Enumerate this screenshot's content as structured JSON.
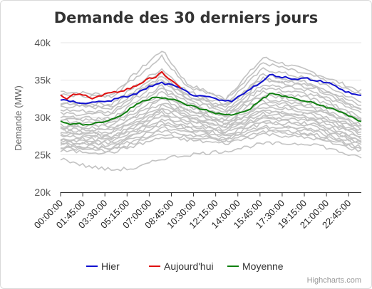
{
  "chart_data": {
    "type": "line",
    "title": "Demande des 30 derniers jours",
    "ylabel": "Demande (MW)",
    "xlabel": "",
    "ylim": [
      20000,
      40000
    ],
    "yticks": [
      20000,
      25000,
      30000,
      35000,
      40000
    ],
    "ytick_labels": [
      "20k",
      "25k",
      "30k",
      "35k",
      "40k"
    ],
    "x_tick_labels": [
      "00:00:00",
      "01:45:00",
      "03:30:00",
      "05:15:00",
      "07:00:00",
      "08:45:00",
      "10:30:00",
      "12:15:00",
      "14:00:00",
      "15:45:00",
      "17:30:00",
      "19:15:00",
      "21:00:00",
      "22:45:00"
    ],
    "x_step_minutes": 15,
    "n_points": 96,
    "grid": true,
    "legend_position": "bottom",
    "series": [
      {
        "name": "Hier",
        "color": "#1010d0",
        "keypoints": [
          [
            0,
            32300
          ],
          [
            4,
            32100
          ],
          [
            8,
            31900
          ],
          [
            12,
            32100
          ],
          [
            16,
            32300
          ],
          [
            20,
            32700
          ],
          [
            24,
            33200
          ],
          [
            28,
            34100
          ],
          [
            32,
            34600
          ],
          [
            34,
            34400
          ],
          [
            36,
            34200
          ],
          [
            38,
            33800
          ],
          [
            40,
            33400
          ],
          [
            42,
            33000
          ],
          [
            44,
            32800
          ],
          [
            46,
            32700
          ],
          [
            48,
            32600
          ],
          [
            50,
            32300
          ],
          [
            52,
            32200
          ],
          [
            54,
            32100
          ],
          [
            56,
            32700
          ],
          [
            58,
            33300
          ],
          [
            60,
            33900
          ],
          [
            64,
            34800
          ],
          [
            66,
            35700
          ],
          [
            68,
            35600
          ],
          [
            70,
            35400
          ],
          [
            72,
            35300
          ],
          [
            74,
            35100
          ],
          [
            76,
            35300
          ],
          [
            78,
            35200
          ],
          [
            80,
            35000
          ],
          [
            82,
            34900
          ],
          [
            84,
            34700
          ],
          [
            86,
            34400
          ],
          [
            88,
            33800
          ],
          [
            90,
            33500
          ],
          [
            92,
            33200
          ],
          [
            95,
            32900
          ]
        ]
      },
      {
        "name": "Aujourd'hui",
        "color": "#e01010",
        "keypoints": [
          [
            0,
            33000
          ],
          [
            2,
            32500
          ],
          [
            4,
            33100
          ],
          [
            8,
            32900
          ],
          [
            10,
            32600
          ],
          [
            12,
            32800
          ],
          [
            16,
            33300
          ],
          [
            20,
            33600
          ],
          [
            24,
            34200
          ],
          [
            26,
            34800
          ],
          [
            28,
            35300
          ],
          [
            30,
            35400
          ],
          [
            32,
            36100
          ],
          [
            34,
            35200
          ],
          [
            36,
            34600
          ],
          [
            38,
            34000
          ]
        ]
      },
      {
        "name": "Moyenne",
        "color": "#108010",
        "keypoints": [
          [
            0,
            29400
          ],
          [
            4,
            29100
          ],
          [
            8,
            29100
          ],
          [
            12,
            29300
          ],
          [
            16,
            29700
          ],
          [
            20,
            30500
          ],
          [
            24,
            31800
          ],
          [
            28,
            32500
          ],
          [
            30,
            32800
          ],
          [
            32,
            32700
          ],
          [
            36,
            32300
          ],
          [
            40,
            31700
          ],
          [
            44,
            31200
          ],
          [
            48,
            30700
          ],
          [
            52,
            30300
          ],
          [
            56,
            30500
          ],
          [
            60,
            31200
          ],
          [
            64,
            32600
          ],
          [
            66,
            33100
          ],
          [
            68,
            33100
          ],
          [
            72,
            32700
          ],
          [
            76,
            32300
          ],
          [
            80,
            31900
          ],
          [
            84,
            31400
          ],
          [
            88,
            30800
          ],
          [
            92,
            30100
          ],
          [
            95,
            29400
          ]
        ]
      }
    ],
    "background_series_color": "#c2c2c2",
    "background_series": [
      [
        [
          0,
          33500
        ],
        [
          16,
          33000
        ],
        [
          28,
          37500
        ],
        [
          32,
          39000
        ],
        [
          40,
          34500
        ],
        [
          52,
          32500
        ],
        [
          64,
          38000
        ],
        [
          80,
          36000
        ],
        [
          95,
          33500
        ]
      ],
      [
        [
          0,
          33000
        ],
        [
          16,
          32800
        ],
        [
          28,
          36800
        ],
        [
          32,
          38200
        ],
        [
          40,
          34200
        ],
        [
          52,
          32400
        ],
        [
          64,
          37300
        ],
        [
          80,
          35500
        ],
        [
          95,
          33000
        ]
      ],
      [
        [
          0,
          32000
        ],
        [
          16,
          31800
        ],
        [
          28,
          35500
        ],
        [
          32,
          36500
        ],
        [
          40,
          33500
        ],
        [
          52,
          31800
        ],
        [
          64,
          36500
        ],
        [
          80,
          35000
        ],
        [
          95,
          32000
        ]
      ],
      [
        [
          0,
          31500
        ],
        [
          16,
          31300
        ],
        [
          28,
          35000
        ],
        [
          32,
          36000
        ],
        [
          40,
          33000
        ],
        [
          52,
          31200
        ],
        [
          64,
          35800
        ],
        [
          80,
          34500
        ],
        [
          95,
          31500
        ]
      ],
      [
        [
          0,
          31000
        ],
        [
          16,
          30700
        ],
        [
          28,
          34500
        ],
        [
          32,
          35500
        ],
        [
          40,
          32600
        ],
        [
          52,
          31000
        ],
        [
          64,
          35000
        ],
        [
          80,
          34000
        ],
        [
          95,
          31000
        ]
      ],
      [
        [
          0,
          30500
        ],
        [
          16,
          30400
        ],
        [
          28,
          33800
        ],
        [
          32,
          34800
        ],
        [
          40,
          32300
        ],
        [
          52,
          30800
        ],
        [
          64,
          34500
        ],
        [
          80,
          33500
        ],
        [
          95,
          30500
        ]
      ],
      [
        [
          0,
          30000
        ],
        [
          16,
          29800
        ],
        [
          28,
          33200
        ],
        [
          32,
          34300
        ],
        [
          40,
          32000
        ],
        [
          52,
          30400
        ],
        [
          64,
          34000
        ],
        [
          80,
          33000
        ],
        [
          95,
          30000
        ]
      ],
      [
        [
          0,
          29800
        ],
        [
          16,
          29500
        ],
        [
          28,
          32800
        ],
        [
          32,
          33800
        ],
        [
          40,
          31700
        ],
        [
          52,
          30200
        ],
        [
          64,
          33500
        ],
        [
          80,
          32500
        ],
        [
          95,
          29800
        ]
      ],
      [
        [
          0,
          29500
        ],
        [
          16,
          29200
        ],
        [
          28,
          32300
        ],
        [
          32,
          33300
        ],
        [
          40,
          31500
        ],
        [
          52,
          30000
        ],
        [
          64,
          33000
        ],
        [
          80,
          32000
        ],
        [
          95,
          29500
        ]
      ],
      [
        [
          0,
          29000
        ],
        [
          16,
          28800
        ],
        [
          28,
          31800
        ],
        [
          32,
          32800
        ],
        [
          40,
          31100
        ],
        [
          52,
          29700
        ],
        [
          64,
          32500
        ],
        [
          80,
          31500
        ],
        [
          95,
          29000
        ]
      ],
      [
        [
          0,
          28800
        ],
        [
          16,
          28500
        ],
        [
          28,
          31400
        ],
        [
          32,
          32400
        ],
        [
          40,
          30900
        ],
        [
          52,
          29500
        ],
        [
          64,
          32200
        ],
        [
          80,
          31200
        ],
        [
          95,
          28800
        ]
      ],
      [
        [
          0,
          28500
        ],
        [
          16,
          28300
        ],
        [
          28,
          31000
        ],
        [
          32,
          32000
        ],
        [
          40,
          30600
        ],
        [
          52,
          29300
        ],
        [
          64,
          31800
        ],
        [
          80,
          31000
        ],
        [
          95,
          28500
        ]
      ],
      [
        [
          0,
          28300
        ],
        [
          16,
          28000
        ],
        [
          28,
          30600
        ],
        [
          32,
          31600
        ],
        [
          40,
          30300
        ],
        [
          52,
          29000
        ],
        [
          64,
          31500
        ],
        [
          80,
          30600
        ],
        [
          95,
          28300
        ]
      ],
      [
        [
          0,
          28000
        ],
        [
          16,
          27800
        ],
        [
          28,
          30300
        ],
        [
          32,
          31300
        ],
        [
          40,
          30000
        ],
        [
          52,
          28800
        ],
        [
          64,
          31000
        ],
        [
          80,
          30300
        ],
        [
          95,
          28000
        ]
      ],
      [
        [
          0,
          27800
        ],
        [
          16,
          27500
        ],
        [
          28,
          30000
        ],
        [
          32,
          31000
        ],
        [
          40,
          29800
        ],
        [
          52,
          28600
        ],
        [
          64,
          30800
        ],
        [
          80,
          30000
        ],
        [
          95,
          27800
        ]
      ],
      [
        [
          0,
          27500
        ],
        [
          16,
          27300
        ],
        [
          28,
          29700
        ],
        [
          32,
          30600
        ],
        [
          40,
          29500
        ],
        [
          52,
          28400
        ],
        [
          64,
          30500
        ],
        [
          80,
          29700
        ],
        [
          95,
          27500
        ]
      ],
      [
        [
          0,
          27200
        ],
        [
          16,
          27000
        ],
        [
          28,
          29300
        ],
        [
          32,
          30200
        ],
        [
          40,
          29200
        ],
        [
          52,
          28200
        ],
        [
          64,
          30100
        ],
        [
          80,
          29400
        ],
        [
          95,
          27200
        ]
      ],
      [
        [
          0,
          27000
        ],
        [
          16,
          26800
        ],
        [
          28,
          29000
        ],
        [
          32,
          29800
        ],
        [
          40,
          28900
        ],
        [
          52,
          28000
        ],
        [
          64,
          29800
        ],
        [
          80,
          29100
        ],
        [
          95,
          27000
        ]
      ],
      [
        [
          0,
          26800
        ],
        [
          16,
          26500
        ],
        [
          28,
          28700
        ],
        [
          32,
          29400
        ],
        [
          40,
          28600
        ],
        [
          52,
          27700
        ],
        [
          64,
          29500
        ],
        [
          80,
          28800
        ],
        [
          95,
          26800
        ]
      ],
      [
        [
          0,
          26600
        ],
        [
          16,
          26300
        ],
        [
          28,
          28300
        ],
        [
          32,
          29000
        ],
        [
          40,
          28300
        ],
        [
          52,
          27500
        ],
        [
          64,
          29200
        ],
        [
          80,
          28500
        ],
        [
          95,
          26600
        ]
      ],
      [
        [
          0,
          26300
        ],
        [
          16,
          26000
        ],
        [
          28,
          28000
        ],
        [
          32,
          28600
        ],
        [
          40,
          28000
        ],
        [
          52,
          27200
        ],
        [
          64,
          28800
        ],
        [
          80,
          28200
        ],
        [
          95,
          26300
        ]
      ],
      [
        [
          0,
          26000
        ],
        [
          16,
          25800
        ],
        [
          28,
          27600
        ],
        [
          32,
          28200
        ],
        [
          40,
          27700
        ],
        [
          52,
          27000
        ],
        [
          64,
          28500
        ],
        [
          80,
          27800
        ],
        [
          95,
          26000
        ]
      ],
      [
        [
          0,
          25800
        ],
        [
          16,
          25600
        ],
        [
          28,
          27200
        ],
        [
          32,
          27800
        ],
        [
          40,
          27400
        ],
        [
          52,
          26800
        ],
        [
          64,
          28200
        ],
        [
          80,
          27500
        ],
        [
          95,
          25800
        ]
      ],
      [
        [
          0,
          25500
        ],
        [
          16,
          25300
        ],
        [
          28,
          26800
        ],
        [
          32,
          27300
        ],
        [
          40,
          27000
        ],
        [
          52,
          26500
        ],
        [
          64,
          27800
        ],
        [
          80,
          27200
        ],
        [
          95,
          25500
        ]
      ],
      [
        [
          0,
          24500
        ],
        [
          8,
          23500
        ],
        [
          16,
          23000
        ],
        [
          24,
          23200
        ],
        [
          32,
          24500
        ],
        [
          40,
          25000
        ],
        [
          52,
          25500
        ],
        [
          64,
          26500
        ],
        [
          80,
          26500
        ],
        [
          95,
          24500
        ]
      ],
      [
        [
          0,
          31800
        ],
        [
          16,
          31500
        ],
        [
          28,
          34200
        ],
        [
          32,
          35000
        ],
        [
          40,
          33000
        ],
        [
          52,
          31500
        ],
        [
          64,
          35200
        ],
        [
          80,
          34200
        ],
        [
          95,
          31200
        ]
      ]
    ]
  },
  "credit": "Highcharts.com"
}
